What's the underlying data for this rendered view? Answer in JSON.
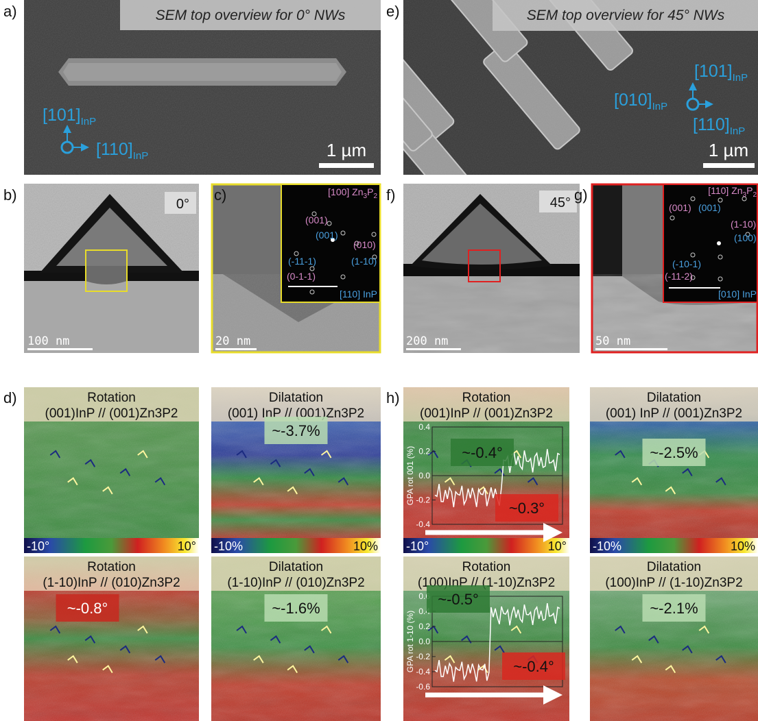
{
  "panels": {
    "a": {
      "label": "a)",
      "banner": "SEM top overview for 0° NWs",
      "axes": [
        [
          "[101]",
          "InP"
        ],
        [
          "[110]",
          "InP"
        ]
      ],
      "scale": "1 µm"
    },
    "e": {
      "label": "e)",
      "banner": "SEM top overview for 45° NWs",
      "axes": [
        [
          "[101]",
          "InP"
        ],
        [
          "[010]",
          "InP"
        ],
        [
          "[110]",
          "InP"
        ]
      ],
      "scale": "1 µm"
    },
    "b": {
      "label": "b)",
      "angle": "0°",
      "scale": "100 nm"
    },
    "c": {
      "label": "c)",
      "scale": "20 nm",
      "zone_top": [
        "[100] Zn",
        "3",
        "P",
        "2"
      ],
      "zone_bottom": "[110] InP",
      "spots_pink": [
        "(001)",
        "(010)",
        "(0-1-1)"
      ],
      "spots_blue": [
        "(001)",
        "(-11-1)",
        "(1-10)"
      ]
    },
    "f": {
      "label": "f)",
      "angle": "45°",
      "scale": "200 nm"
    },
    "g": {
      "label": "g)",
      "scale": "50 nm",
      "zone_top": [
        "[110] Zn",
        "3",
        "P",
        "2"
      ],
      "zone_bottom": "[010] InP",
      "spots_pink": [
        "(001)",
        "(1-10)",
        "(-11-2)"
      ],
      "spots_blue": [
        "(001)",
        "(-10-1)",
        "(100)"
      ]
    },
    "d": {
      "label": "d)",
      "maps": [
        {
          "title": "Rotation",
          "subtitle": "(001)InP // (001)Zn3P2",
          "colorbar": [
            "-10°",
            "10°"
          ]
        },
        {
          "title": "Dilatation",
          "subtitle": "(001) InP // (001)Zn3P2",
          "value": "~-3.7%",
          "colorbar": [
            "-10%",
            "10%"
          ]
        },
        {
          "title": "Rotation",
          "subtitle": "(1-10)InP // (010)Zn3P2",
          "value": "~-0.8°"
        },
        {
          "title": "Dilatation",
          "subtitle": "(1-10)InP // (010)Zn3P2",
          "value": "~-1.6%"
        }
      ]
    },
    "h": {
      "label": "h)",
      "maps": [
        {
          "title": "Rotation",
          "subtitle": "(001)InP // (001)Zn3P2",
          "colorbar": [
            "-10°",
            "10°"
          ],
          "values": [
            "~-0.4°",
            "~0.3°"
          ],
          "plot": {
            "ylabel": "GPA rot 001 (%)",
            "yticks": [
              "0.4",
              "0.2",
              "0.0",
              "-0.2",
              "-0.4"
            ]
          }
        },
        {
          "title": "Dilatation",
          "subtitle": "(001) InP // (001)Zn3P2",
          "value": "~-2.5%",
          "colorbar": [
            "-10%",
            "10%"
          ]
        },
        {
          "title": "Rotation",
          "subtitle": "(100)InP // (1-10)Zn3P2",
          "values": [
            "~-0.5°",
            "~-0.4°"
          ],
          "plot": {
            "ylabel": "GPA rot 1-10 (%)",
            "yticks": [
              "0.6",
              "0.4",
              "0.2",
              "0.0",
              "-0.2",
              "-0.4",
              "-0.6"
            ]
          }
        },
        {
          "title": "Dilatation",
          "subtitle": "(100)InP // (1-10)Zn3P2",
          "value": "~-2.1%"
        }
      ]
    }
  }
}
